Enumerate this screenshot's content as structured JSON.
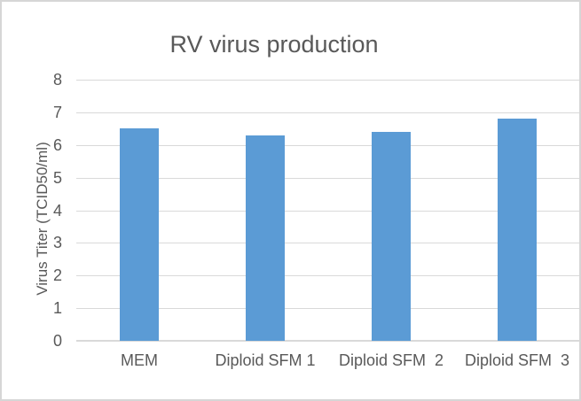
{
  "chart_data": {
    "type": "bar",
    "title": "RV virus production",
    "categories": [
      "MEM",
      "Diploid SFM 1",
      "Diploid SFM  2",
      "Diploid SFM  3"
    ],
    "values": [
      6.5,
      6.3,
      6.4,
      6.8
    ],
    "xlabel": "",
    "ylabel": "Virus Titer  (TCID50/ml)",
    "ylim": [
      0,
      8
    ],
    "ytick_step": 1,
    "yticks": [
      0,
      1,
      2,
      3,
      4,
      5,
      6,
      7,
      8
    ],
    "grid": true,
    "legend": "none",
    "colors": {
      "bar": "#5b9bd5",
      "gridline": "#d9d9d9",
      "axis_line": "#d9d9d9",
      "text": "#595959",
      "background": "#ffffff",
      "frame_border": "#d6d6d6"
    }
  }
}
